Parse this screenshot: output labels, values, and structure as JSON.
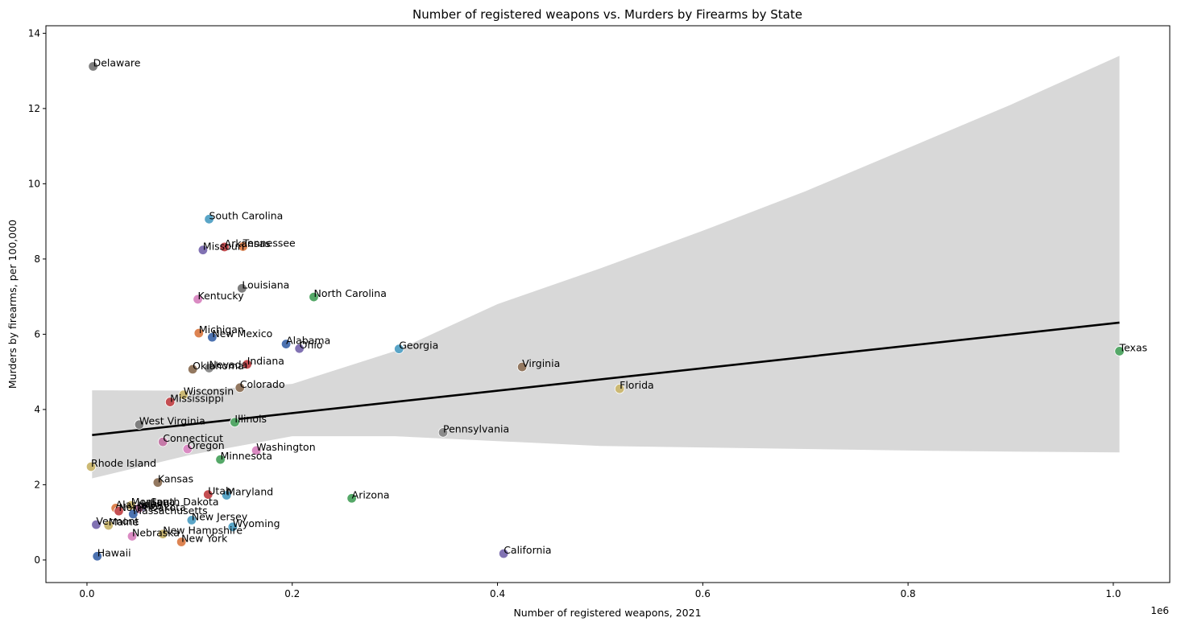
{
  "chart_data": {
    "type": "scatter",
    "title": "Number of registered weapons vs. Murders by Firearms by State",
    "xlabel": "Number of registered weapons, 2021",
    "ylabel": "Murders by firearms, per 100,000",
    "x_offset_label": "1e6",
    "xlim": [
      -0.04,
      1.055
    ],
    "ylim": [
      -0.6,
      14.2
    ],
    "xticks": [
      0.0,
      0.2,
      0.4,
      0.6,
      0.8,
      1.0
    ],
    "xtick_labels": [
      "0.0",
      "0.2",
      "0.4",
      "0.6",
      "0.8",
      "1.0"
    ],
    "yticks": [
      0,
      2,
      4,
      6,
      8,
      10,
      12,
      14
    ],
    "ytick_labels": [
      "0",
      "2",
      "4",
      "6",
      "8",
      "10",
      "12",
      "14"
    ],
    "regression_line": {
      "x": [
        0.005,
        1.006
      ],
      "y": [
        3.32,
        6.31
      ],
      "color": "#000000"
    },
    "confidence_band": {
      "color": "#d8d8d8",
      "x": [
        0.005,
        0.1,
        0.2,
        0.3,
        0.4,
        0.5,
        0.6,
        0.7,
        0.8,
        0.9,
        1.006
      ],
      "upper": [
        4.51,
        4.5,
        4.68,
        5.55,
        6.8,
        7.75,
        8.75,
        9.8,
        10.95,
        12.1,
        13.4
      ],
      "lower": [
        2.17,
        2.79,
        3.29,
        3.29,
        3.16,
        3.03,
        2.99,
        2.95,
        2.91,
        2.88,
        2.86
      ]
    },
    "points": [
      {
        "label": "Delaware",
        "x": 0.006,
        "y": 13.12,
        "color": "#7f7f7f"
      },
      {
        "label": "South Carolina",
        "x": 0.119,
        "y": 9.06,
        "color": "#5aa5c7"
      },
      {
        "label": "Arkansas",
        "x": 0.134,
        "y": 8.32,
        "color": "#c44e52"
      },
      {
        "label": "Tennessee",
        "x": 0.152,
        "y": 8.33,
        "color": "#dd8452"
      },
      {
        "label": "Missouri",
        "x": 0.113,
        "y": 8.24,
        "color": "#8172b3"
      },
      {
        "label": "Louisiana",
        "x": 0.151,
        "y": 7.22,
        "color": "#7f7f7f"
      },
      {
        "label": "North Carolina",
        "x": 0.221,
        "y": 6.99,
        "color": "#55a868"
      },
      {
        "label": "Kentucky",
        "x": 0.108,
        "y": 6.93,
        "color": "#da8bc3"
      },
      {
        "label": "Michigan",
        "x": 0.109,
        "y": 6.03,
        "color": "#dd8452"
      },
      {
        "label": "New Mexico",
        "x": 0.122,
        "y": 5.92,
        "color": "#4c72b0"
      },
      {
        "label": "Alabama",
        "x": 0.194,
        "y": 5.74,
        "color": "#4c72b0"
      },
      {
        "label": "Ohio",
        "x": 0.207,
        "y": 5.62,
        "color": "#8172b3"
      },
      {
        "label": "Georgia",
        "x": 0.304,
        "y": 5.61,
        "color": "#5aa5c7"
      },
      {
        "label": "Texas",
        "x": 1.006,
        "y": 5.55,
        "color": "#55a868"
      },
      {
        "label": "Virginia",
        "x": 0.424,
        "y": 5.13,
        "color": "#937860"
      },
      {
        "label": "Indiana",
        "x": 0.156,
        "y": 5.2,
        "color": "#c44e52"
      },
      {
        "label": "Nevada",
        "x": 0.119,
        "y": 5.1,
        "color": "#8c8c8c"
      },
      {
        "label": "Oklahoma",
        "x": 0.103,
        "y": 5.07,
        "color": "#937860"
      },
      {
        "label": "Colorado",
        "x": 0.149,
        "y": 4.58,
        "color": "#937860"
      },
      {
        "label": "Florida",
        "x": 0.519,
        "y": 4.55,
        "color": "#ccb974"
      },
      {
        "label": "Wisconsin",
        "x": 0.094,
        "y": 4.39,
        "color": "#ccb974"
      },
      {
        "label": "Mississippi",
        "x": 0.081,
        "y": 4.2,
        "color": "#c44e52"
      },
      {
        "label": "West Virginia",
        "x": 0.051,
        "y": 3.6,
        "color": "#7f7f7f"
      },
      {
        "label": "Illinois",
        "x": 0.144,
        "y": 3.66,
        "color": "#55a868"
      },
      {
        "label": "Pennsylvania",
        "x": 0.347,
        "y": 3.39,
        "color": "#8c8c8c"
      },
      {
        "label": "Connecticut",
        "x": 0.074,
        "y": 3.14,
        "color": "#c57aa8"
      },
      {
        "label": "Oregon",
        "x": 0.098,
        "y": 2.95,
        "color": "#da8bc3"
      },
      {
        "label": "Washington",
        "x": 0.165,
        "y": 2.91,
        "color": "#da8bc3"
      },
      {
        "label": "Minnesota",
        "x": 0.13,
        "y": 2.67,
        "color": "#55a868"
      },
      {
        "label": "Rhode Island",
        "x": 0.004,
        "y": 2.48,
        "color": "#ccb974"
      },
      {
        "label": "Kansas",
        "x": 0.069,
        "y": 2.06,
        "color": "#937860"
      },
      {
        "label": "Utah",
        "x": 0.118,
        "y": 1.74,
        "color": "#c44e52"
      },
      {
        "label": "Maryland",
        "x": 0.136,
        "y": 1.72,
        "color": "#5aa5c7"
      },
      {
        "label": "Arizona",
        "x": 0.258,
        "y": 1.64,
        "color": "#55a868"
      },
      {
        "label": "Montana",
        "x": 0.043,
        "y": 1.45,
        "color": "#ccb974"
      },
      {
        "label": "South Dakota",
        "x": 0.062,
        "y": 1.45,
        "color": "#8c8c8c"
      },
      {
        "label": "Alaska",
        "x": 0.028,
        "y": 1.38,
        "color": "#dd8452"
      },
      {
        "label": "Idaho",
        "x": 0.053,
        "y": 1.4,
        "color": "#8172b3"
      },
      {
        "label": "Iowa",
        "x": 0.05,
        "y": 1.36,
        "color": "#c57aa8"
      },
      {
        "label": "Massachusetts",
        "x": 0.045,
        "y": 1.22,
        "color": "#4c72b0"
      },
      {
        "label": "North Dakota",
        "x": 0.031,
        "y": 1.3,
        "color": "#c44e52"
      },
      {
        "label": "New Jersey",
        "x": 0.102,
        "y": 1.06,
        "color": "#5aa5c7"
      },
      {
        "label": "Vermont",
        "x": 0.009,
        "y": 0.94,
        "color": "#8172b3"
      },
      {
        "label": "Maine",
        "x": 0.021,
        "y": 0.92,
        "color": "#ccb974"
      },
      {
        "label": "Wyoming",
        "x": 0.142,
        "y": 0.88,
        "color": "#5aa5c7"
      },
      {
        "label": "New Hampshire",
        "x": 0.074,
        "y": 0.69,
        "color": "#ccb974"
      },
      {
        "label": "Nebraska",
        "x": 0.044,
        "y": 0.63,
        "color": "#da8bc3"
      },
      {
        "label": "New York",
        "x": 0.092,
        "y": 0.48,
        "color": "#dd8452"
      },
      {
        "label": "Hawaii",
        "x": 0.01,
        "y": 0.1,
        "color": "#4c72b0"
      },
      {
        "label": "California",
        "x": 0.406,
        "y": 0.17,
        "color": "#8172b3"
      }
    ]
  }
}
